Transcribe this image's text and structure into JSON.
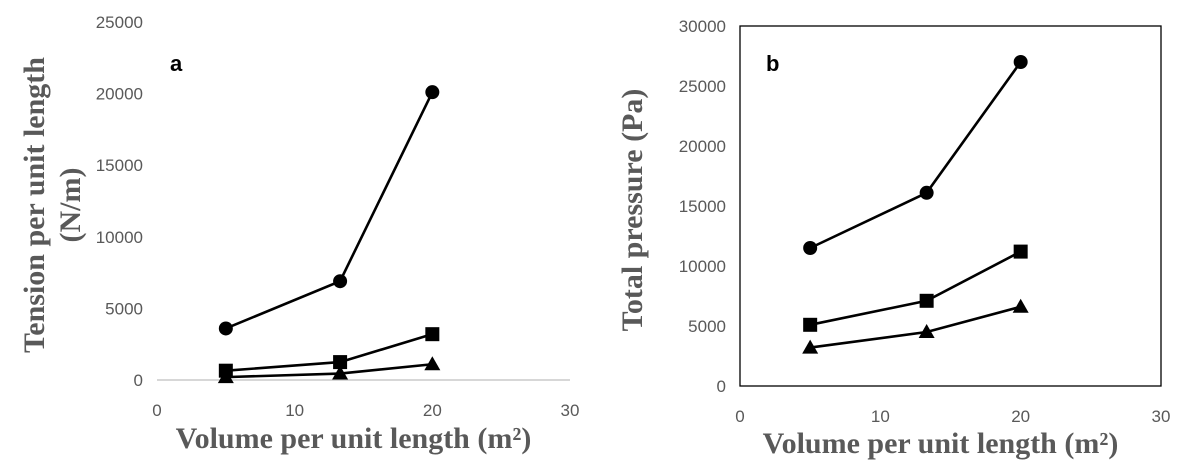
{
  "chart_data": [
    {
      "type": "line",
      "panel_label": "a",
      "xlabel": "Volume per unit length (m²)",
      "ylabel_lines": [
        "Tension per unit length",
        "(N/m)"
      ],
      "xlim": [
        0,
        30
      ],
      "ylim": [
        0,
        25000
      ],
      "xticks": [
        "0",
        "10",
        "20",
        "30"
      ],
      "yticks": [
        "0",
        "5000",
        "10000",
        "15000",
        "20000",
        "25000"
      ],
      "x": [
        5,
        13.3,
        20
      ],
      "series": [
        {
          "marker": "circle",
          "values": [
            3600,
            6900,
            20100
          ]
        },
        {
          "marker": "square",
          "values": [
            650,
            1250,
            3200
          ]
        },
        {
          "marker": "triangle",
          "values": [
            200,
            450,
            1100
          ]
        }
      ],
      "grid": false,
      "color": "#000000"
    },
    {
      "type": "line",
      "panel_label": "b",
      "xlabel": "Volume per unit length (m²)",
      "ylabel_lines": [
        "Total pressure (Pa)"
      ],
      "xlim": [
        0,
        30
      ],
      "ylim": [
        0,
        30000
      ],
      "xticks": [
        "0",
        "10",
        "20",
        "30"
      ],
      "yticks": [
        "0",
        "5000",
        "10000",
        "15000",
        "20000",
        "25000",
        "30000"
      ],
      "x": [
        5,
        13.3,
        20
      ],
      "series": [
        {
          "marker": "circle",
          "values": [
            11500,
            16100,
            27000
          ]
        },
        {
          "marker": "square",
          "values": [
            5100,
            7100,
            11200
          ]
        },
        {
          "marker": "triangle",
          "values": [
            3200,
            4500,
            6600
          ]
        }
      ],
      "grid": false,
      "color": "#000000"
    }
  ]
}
